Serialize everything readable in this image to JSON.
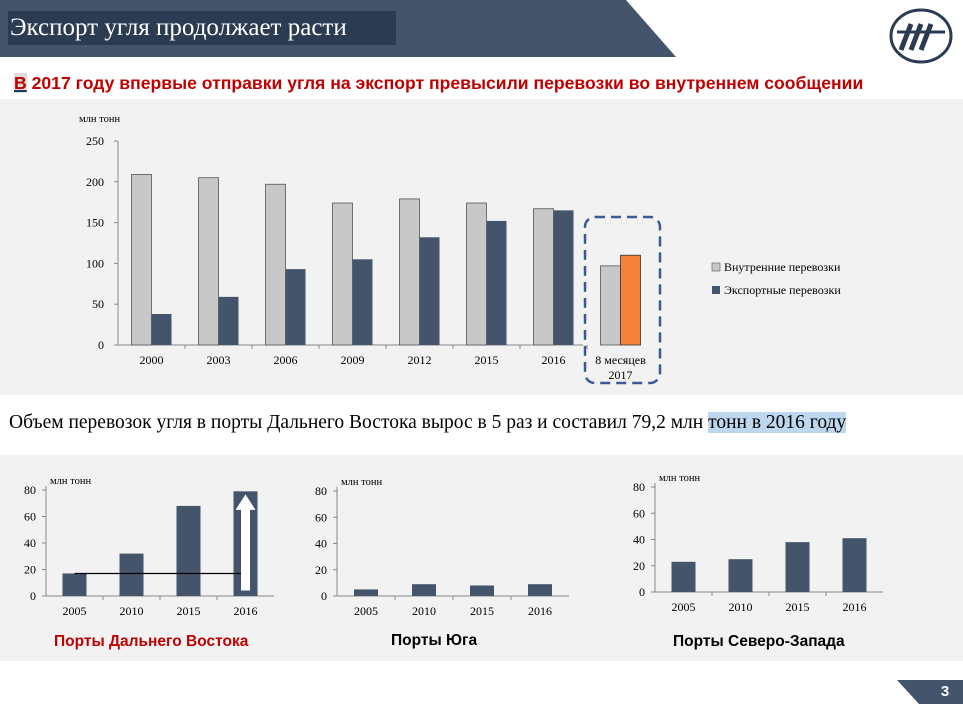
{
  "header": {
    "title": "Экспорт угля продолжает расти",
    "subtitle_first": "В",
    "subtitle_rest": " 2017 году впервые отправки угля на экспорт превысили перевозки во внутреннем сообщении"
  },
  "statement": {
    "text_before": "Объем перевозок угля в порты Дальнего Востока вырос в 5 раз и составил 79,2 млн ",
    "text_highlight": "тонн в 2016 году"
  },
  "page_number": "3",
  "colors": {
    "header": "#44546a",
    "header_title_bg": "#2b3c52",
    "domestic": "#c8c8c8",
    "export": "#44546a",
    "export_2017": "#f5813b",
    "highlight_box": "#3a5a9a",
    "subtitle": "#c00000",
    "fe_title": "#c00000"
  },
  "chart_data": [
    {
      "type": "bar",
      "ylabel": "млн тонн",
      "ylim": [
        0,
        250
      ],
      "yticks": [
        0,
        50,
        100,
        150,
        200,
        250
      ],
      "categories": [
        "2000",
        "2003",
        "2006",
        "2009",
        "2012",
        "2015",
        "2016",
        "8 месяцев 2017"
      ],
      "series": [
        {
          "name": "Внутренние перевозки",
          "values": [
            209,
            205,
            197,
            174,
            179,
            174,
            167,
            97
          ]
        },
        {
          "name": "Экспортные перевозки",
          "values": [
            38,
            59,
            93,
            105,
            132,
            152,
            165,
            110
          ]
        }
      ],
      "legend": "right",
      "highlight_category": "8 месяцев 2017"
    },
    {
      "type": "bar",
      "title": "Порты Дальнего Востока",
      "ylabel": "млн тонн",
      "ylim": [
        0,
        80
      ],
      "yticks": [
        0,
        20,
        40,
        60,
        80
      ],
      "categories": [
        "2005",
        "2010",
        "2015",
        "2016"
      ],
      "values": [
        17,
        32,
        68,
        79
      ],
      "annotation": "up-arrow"
    },
    {
      "type": "bar",
      "title": "Порты Юга",
      "ylabel": "млн тонн",
      "ylim": [
        0,
        80
      ],
      "yticks": [
        0,
        20,
        40,
        60,
        80
      ],
      "categories": [
        "2005",
        "2010",
        "2015",
        "2016"
      ],
      "values": [
        5,
        9,
        8,
        9
      ]
    },
    {
      "type": "bar",
      "title": "Порты Северо-Запада",
      "ylabel": "млн тонн",
      "ylim": [
        0,
        80
      ],
      "yticks": [
        0,
        20,
        40,
        60,
        80
      ],
      "categories": [
        "2005",
        "2010",
        "2015",
        "2016"
      ],
      "values": [
        23,
        25,
        38,
        41
      ]
    }
  ]
}
